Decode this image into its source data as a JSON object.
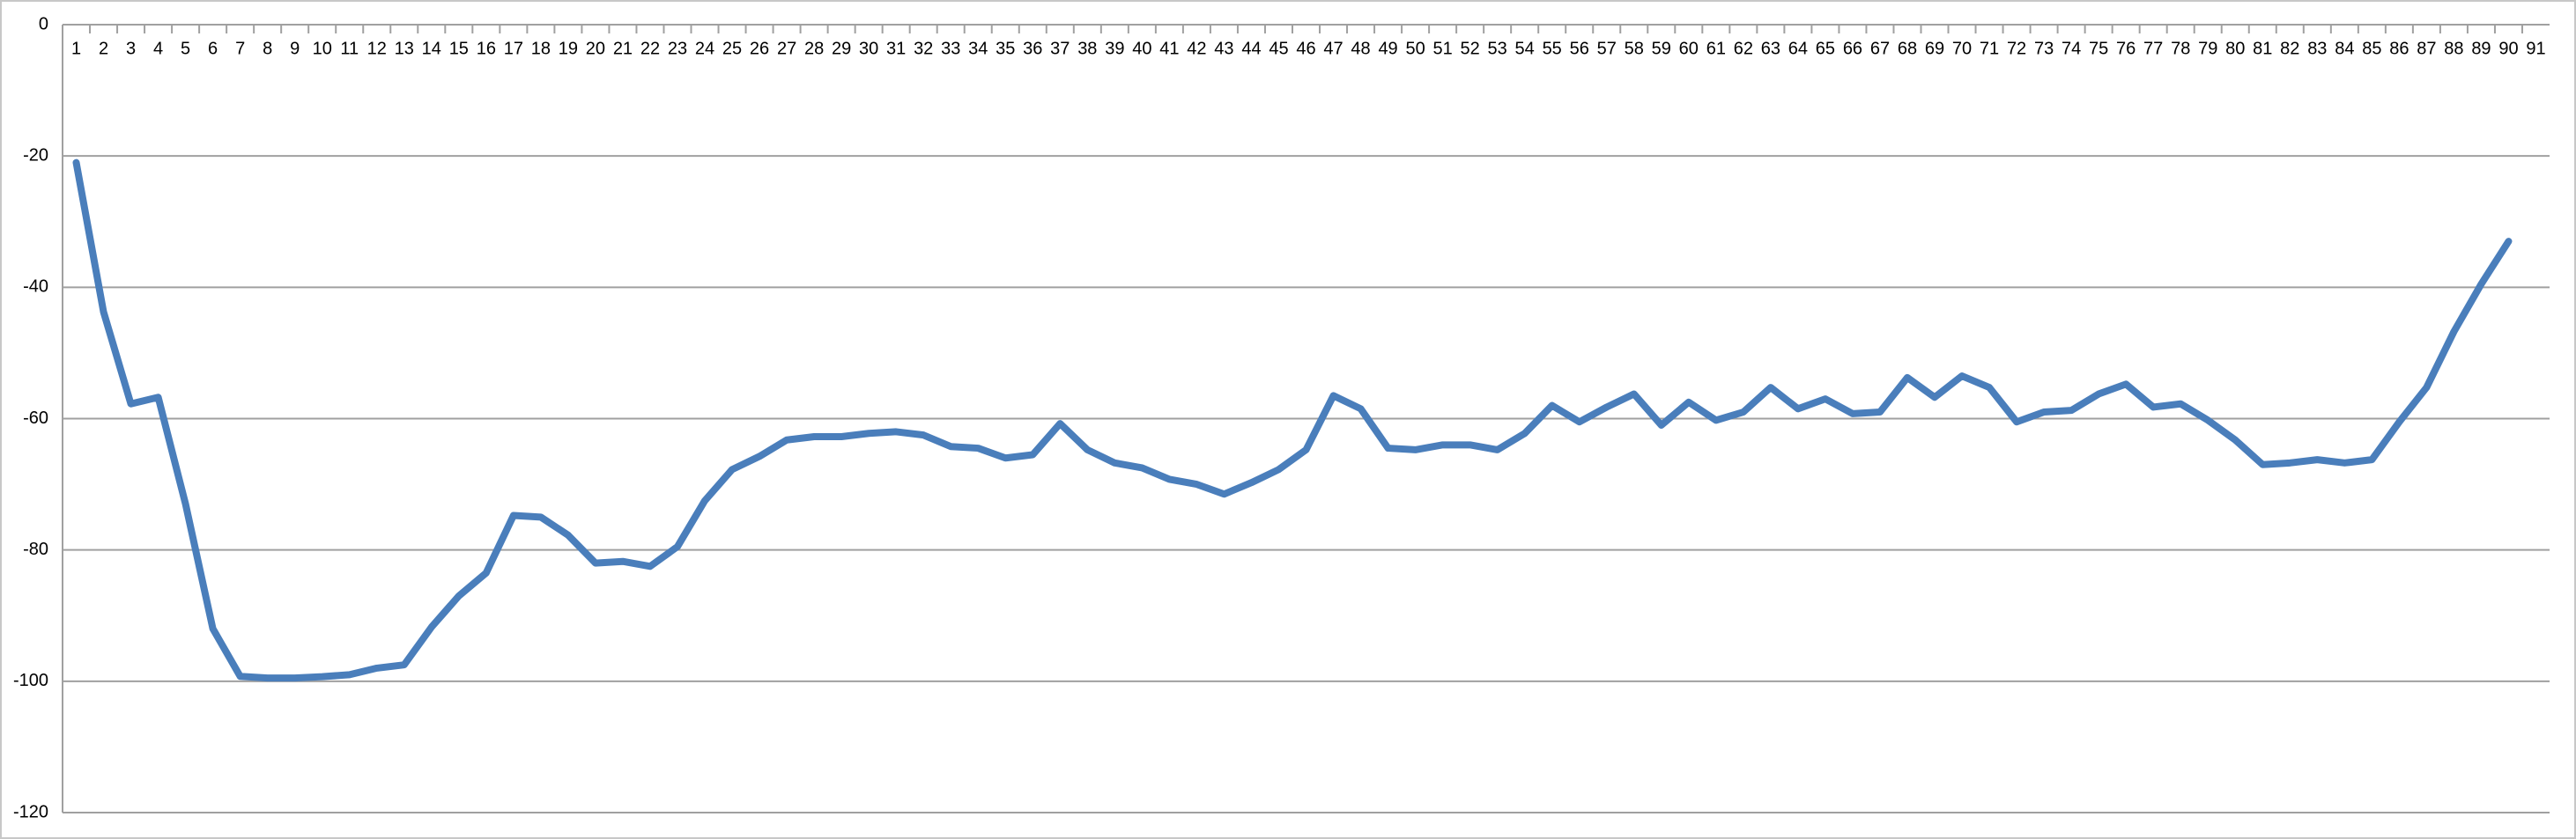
{
  "chart_data": {
    "type": "line",
    "categories": [
      "1",
      "2",
      "3",
      "4",
      "5",
      "6",
      "7",
      "8",
      "9",
      "10",
      "11",
      "12",
      "13",
      "14",
      "15",
      "16",
      "17",
      "18",
      "19",
      "20",
      "21",
      "22",
      "23",
      "24",
      "25",
      "26",
      "27",
      "28",
      "29",
      "30",
      "31",
      "32",
      "33",
      "34",
      "35",
      "36",
      "37",
      "38",
      "39",
      "40",
      "41",
      "42",
      "43",
      "44",
      "45",
      "46",
      "47",
      "48",
      "49",
      "50",
      "51",
      "52",
      "53",
      "54",
      "55",
      "56",
      "57",
      "58",
      "59",
      "60",
      "61",
      "62",
      "63",
      "64",
      "65",
      "66",
      "67",
      "68",
      "69",
      "70",
      "71",
      "72",
      "73",
      "74",
      "75",
      "76",
      "77",
      "78",
      "79",
      "80",
      "81",
      "82",
      "83",
      "84",
      "85",
      "86",
      "87",
      "88",
      "89",
      "90",
      "91"
    ],
    "series": [
      {
        "color": "#4a7ebb",
        "values": [
          -21,
          -43.75,
          -57.75,
          -56.75,
          -73,
          -92,
          -99.25,
          -99.5,
          -99.5,
          -99.3,
          -99,
          -98,
          -97.5,
          -91.75,
          -87,
          -83.5,
          -74.75,
          -75,
          -77.75,
          -82,
          -81.75,
          -82.5,
          -79.5,
          -72.5,
          -67.75,
          -65.75,
          -63.25,
          -62.75,
          -62.75,
          -62.25,
          -62,
          -62.5,
          -64.25,
          -64.5,
          -66,
          -65.5,
          -60.75,
          -64.75,
          -66.75,
          -67.5,
          -69.25,
          -70,
          -71.5,
          -69.75,
          -67.75,
          -64.75,
          -56.5,
          -58.5,
          -64.5,
          -64.75,
          -64,
          -64,
          -64.75,
          -62.25,
          -58,
          -60.5,
          -58.25,
          -56.25,
          -61,
          -57.5,
          -60.25,
          -59,
          -55.25,
          -58.5,
          -57,
          -59.25,
          -59,
          -53.75,
          -56.75,
          -53.5,
          -55.25,
          -60.5,
          -59,
          -58.75,
          -56.25,
          -54.75,
          -58.25,
          -57.75,
          -60.25,
          -63.25,
          -67,
          -66.75,
          -66.25,
          -66.75,
          -66.25,
          -60.5,
          -55.25,
          -46.75,
          -39.5,
          -33,
          null
        ]
      }
    ],
    "ylim": [
      -120,
      0
    ],
    "yticks": [
      0,
      -20,
      -40,
      -60,
      -80,
      -100,
      -120
    ],
    "grid": true
  }
}
